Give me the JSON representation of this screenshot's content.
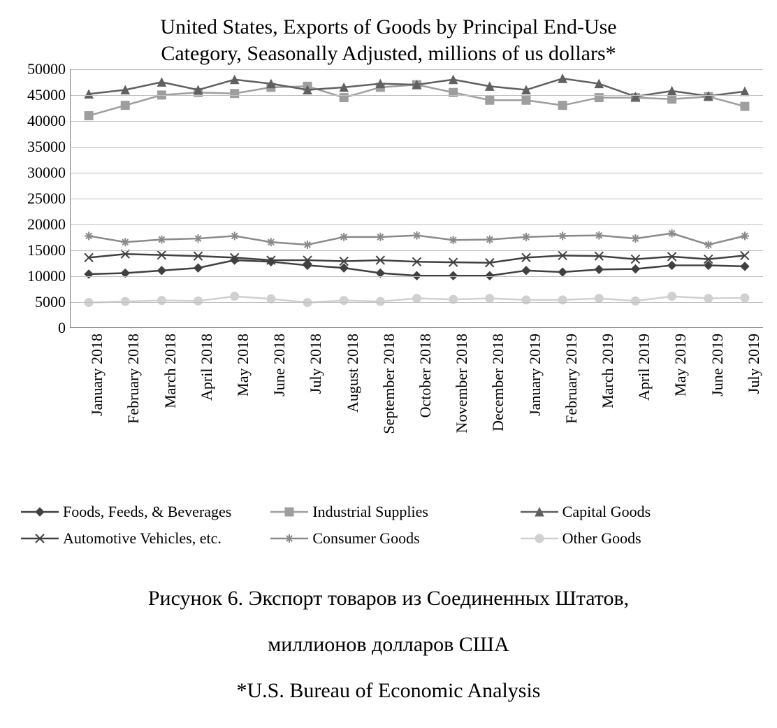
{
  "chart": {
    "type": "line",
    "title_line1": "United States, Exports of Goods by Principal End-Use",
    "title_line2": "Category, Seasonally Adjusted, millions of us dollars*",
    "title_fontsize": 30,
    "background_color": "#ffffff",
    "grid_color": "#bfbfbf",
    "axis_color": "#808080",
    "text_color": "#000000",
    "label_fontsize": 22,
    "ylim": [
      0,
      50000
    ],
    "ytick_step": 5000,
    "yticks": [
      0,
      5000,
      10000,
      15000,
      20000,
      25000,
      30000,
      35000,
      40000,
      45000,
      50000
    ],
    "categories": [
      "January 2018",
      "February 2018",
      "March 2018",
      "April 2018",
      "May 2018",
      "June 2018",
      "July 2018",
      "August 2018",
      "September 2018",
      "October 2018",
      "November 2018",
      "December 2018",
      "January 2019",
      "February 2019",
      "March 2019",
      "April 2019",
      "May 2019",
      "June 2019",
      "July 2019"
    ],
    "line_width": 2.5,
    "marker_size": 6,
    "series": [
      {
        "key": "foods",
        "label": "Foods, Feeds, & Beverages",
        "color": "#404040",
        "marker": "diamond",
        "values": [
          10300,
          10500,
          11000,
          11500,
          13000,
          12700,
          12000,
          11500,
          10500,
          10000,
          10000,
          10000,
          11000,
          10700,
          11200,
          11300,
          12000,
          12000,
          11800
        ]
      },
      {
        "key": "industrial",
        "label": "Industrial Supplies",
        "color": "#9e9e9e",
        "marker": "square",
        "values": [
          41000,
          43000,
          45000,
          45500,
          45300,
          46500,
          46700,
          44500,
          46500,
          47000,
          45500,
          44000,
          44000,
          43000,
          44500,
          44500,
          44200,
          44700,
          42800
        ]
      },
      {
        "key": "capital",
        "label": "Capital Goods",
        "color": "#606060",
        "marker": "triangle",
        "values": [
          45200,
          46000,
          47500,
          46000,
          48000,
          47200,
          46000,
          46500,
          47200,
          47000,
          48000,
          46700,
          46000,
          48200,
          47200,
          44700,
          45800,
          44800,
          45700
        ]
      },
      {
        "key": "auto",
        "label": "Automotive Vehicles, etc.",
        "color": "#404040",
        "marker": "x",
        "values": [
          13500,
          14200,
          14000,
          13800,
          13500,
          13000,
          13000,
          12800,
          13000,
          12700,
          12600,
          12500,
          13500,
          13900,
          13800,
          13200,
          13700,
          13200,
          13900
        ]
      },
      {
        "key": "consumer",
        "label": "Consumer Goods",
        "color": "#8a8a8a",
        "marker": "asterisk",
        "values": [
          17700,
          16500,
          17000,
          17200,
          17700,
          16500,
          16000,
          17500,
          17500,
          17800,
          16900,
          17000,
          17500,
          17700,
          17800,
          17200,
          18200,
          16000,
          17700
        ]
      },
      {
        "key": "other",
        "label": "Other Goods",
        "color": "#d0d0d0",
        "marker": "circle",
        "values": [
          4800,
          5000,
          5200,
          5100,
          6000,
          5500,
          4800,
          5200,
          5000,
          5600,
          5400,
          5600,
          5300,
          5300,
          5600,
          5100,
          6000,
          5600,
          5700
        ]
      }
    ]
  },
  "caption": {
    "line1": "Рисунок 6. Экспорт товаров из Соединенных Штатов,",
    "line2": "миллионов долларов США",
    "line3": "*U.S. Bureau of Economic Analysis",
    "fontsize": 30
  }
}
